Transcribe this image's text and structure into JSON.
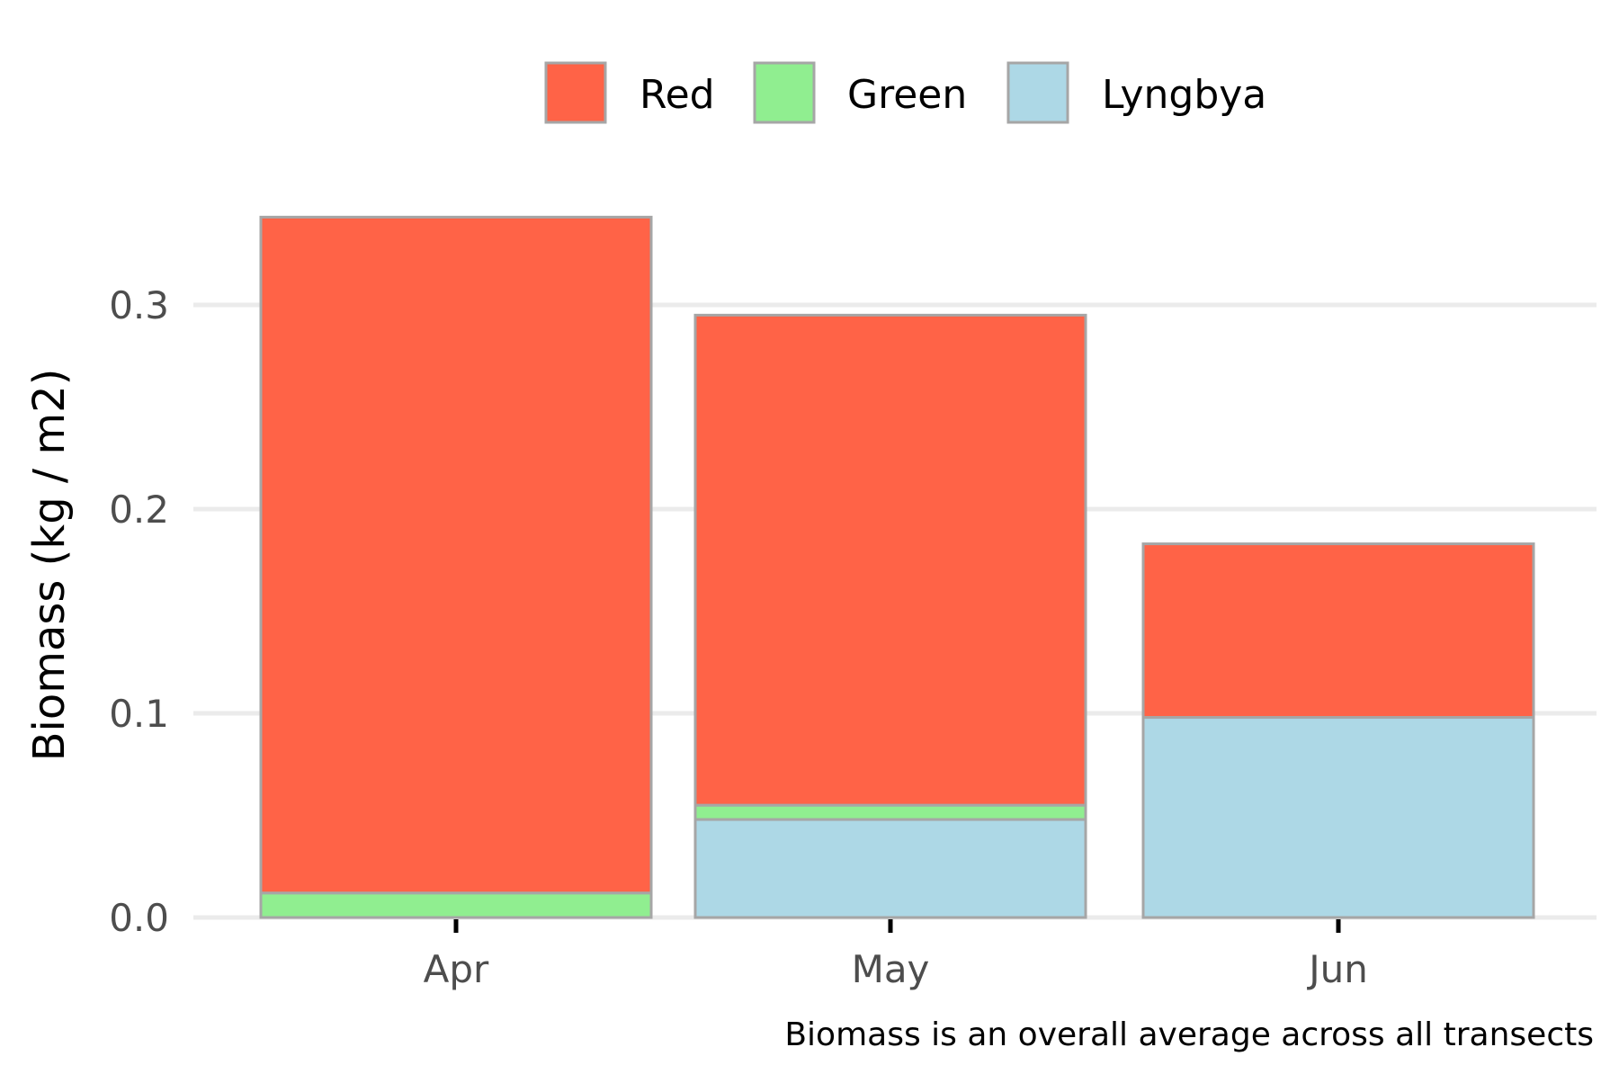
{
  "chart_data": {
    "type": "bar",
    "stacked": true,
    "categories": [
      "Apr",
      "May",
      "Jun"
    ],
    "series": [
      {
        "name": "Lyngbya",
        "color": "#add8e6",
        "values": [
          0.0,
          0.048,
          0.098
        ]
      },
      {
        "name": "Green",
        "color": "#90ee90",
        "values": [
          0.012,
          0.007,
          0.0
        ]
      },
      {
        "name": "Red",
        "color": "#ff6347",
        "values": [
          0.331,
          0.24,
          0.085
        ]
      }
    ],
    "legend": {
      "position": "top",
      "order": [
        "Red",
        "Green",
        "Lyngbya"
      ]
    },
    "xlabel": "",
    "ylabel": "Biomass (kg / m2)",
    "ylim": [
      0,
      0.35
    ],
    "yticks": [
      0.0,
      0.1,
      0.2,
      0.3
    ],
    "ytick_labels": [
      "0.0",
      "0.1",
      "0.2",
      "0.3"
    ],
    "grid": "horizontal",
    "bar_border_color": "#a6a6a6",
    "caption": "Biomass is an overall average across all transects"
  }
}
